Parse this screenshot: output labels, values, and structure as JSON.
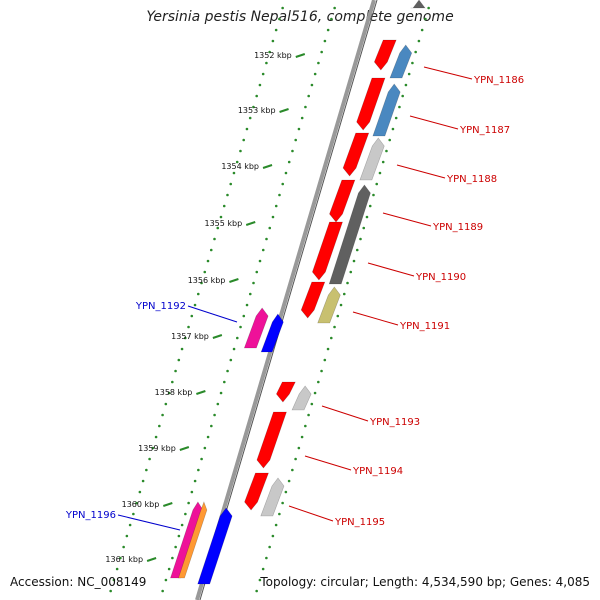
{
  "title": "Yersinia pestis Nepal516, complete genome",
  "accession": "Accession: NC_008149",
  "summary": "Topology: circular; Length: 4,534,590 bp; Genes: 4,085",
  "ticks": [
    {
      "label": "1352 kbp"
    },
    {
      "label": "1353 kbp"
    },
    {
      "label": "1354 kbp"
    },
    {
      "label": "1355 kbp"
    },
    {
      "label": "1356 kbp"
    },
    {
      "label": "1357 kbp"
    },
    {
      "label": "1358 kbp"
    },
    {
      "label": "1359 kbp"
    },
    {
      "label": "1360 kbp"
    },
    {
      "label": "1361 kbp"
    }
  ],
  "forward_labels": [
    "YPN_1186",
    "YPN_1187",
    "YPN_1188",
    "YPN_1189",
    "YPN_1190",
    "YPN_1191",
    "YPN_1193",
    "YPN_1194",
    "YPN_1195"
  ],
  "reverse_labels": [
    "YPN_1192",
    "YPN_1196"
  ],
  "colors": {
    "forward_label": "#cc0000",
    "reverse_label": "#0000cc",
    "backbone": "#808080",
    "tick_dots": "#2a8a2a",
    "cds": "#ff0000",
    "cds_blue": "#4a88c0",
    "cds_light_gray": "#c8c8c8",
    "cds_dark_gray": "#606060",
    "cds_olive": "#c8c070",
    "cds_magenta": "#ee1199",
    "cds_reverse": "#0000ff",
    "cds_orange": "#ff9933"
  }
}
